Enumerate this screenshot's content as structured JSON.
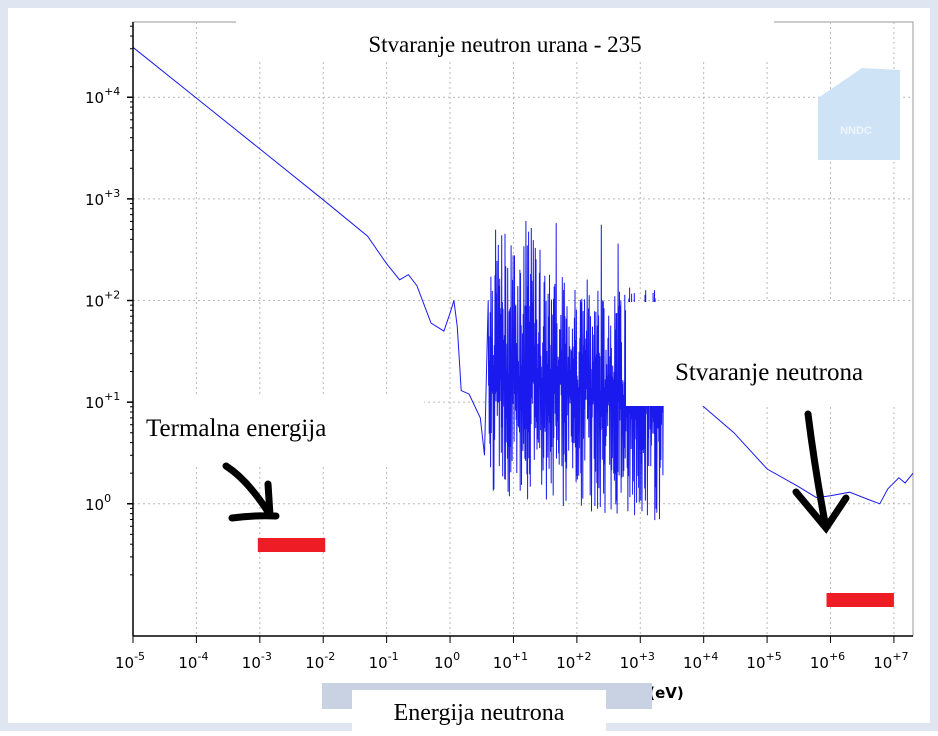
{
  "chart_data": {
    "type": "line",
    "title": "Stvaranje neutron urana - 235",
    "xlabel": "Energija neutrona",
    "x_unit": "(eV)",
    "ylabel": "",
    "x_scale": "log",
    "y_scale": "log",
    "xlim": [
      1e-05,
      20000000.0
    ],
    "ylim": [
      0.05,
      55000
    ],
    "grid": true,
    "x_ticks": [
      {
        "value": 1e-05,
        "base": "10",
        "exp": "-5"
      },
      {
        "value": 0.0001,
        "base": "10",
        "exp": "-4"
      },
      {
        "value": 0.001,
        "base": "10",
        "exp": "-3"
      },
      {
        "value": 0.01,
        "base": "10",
        "exp": "-2"
      },
      {
        "value": 0.1,
        "base": "10",
        "exp": "-1"
      },
      {
        "value": 1.0,
        "base": "10",
        "exp": "0"
      },
      {
        "value": 10.0,
        "base": "10",
        "exp": "+1"
      },
      {
        "value": 100.0,
        "base": "10",
        "exp": "+2"
      },
      {
        "value": 1000.0,
        "base": "10",
        "exp": "+3"
      },
      {
        "value": 10000.0,
        "base": "10",
        "exp": "+4"
      },
      {
        "value": 100000.0,
        "base": "10",
        "exp": "+5"
      },
      {
        "value": 1000000.0,
        "base": "10",
        "exp": "+6"
      },
      {
        "value": 10000000.0,
        "base": "10",
        "exp": "+7"
      }
    ],
    "y_ticks": [
      {
        "value": 1.0,
        "base": "10",
        "exp": "0"
      },
      {
        "value": 10.0,
        "base": "10",
        "exp": "+1"
      },
      {
        "value": 100.0,
        "base": "10",
        "exp": "+2"
      },
      {
        "value": 1000.0,
        "base": "10",
        "exp": "+3"
      },
      {
        "value": 10000.0,
        "base": "10",
        "exp": "+4"
      }
    ],
    "series": [
      {
        "color": "#1a1aee",
        "points": [
          [
            1e-05,
            31000
          ],
          [
            0.0001,
            9800
          ],
          [
            0.001,
            3100
          ],
          [
            0.01,
            980
          ],
          [
            0.05,
            430
          ],
          [
            0.1,
            230
          ],
          [
            0.16,
            160
          ],
          [
            0.22,
            180
          ],
          [
            0.3,
            140
          ],
          [
            0.5,
            60
          ],
          [
            0.8,
            50
          ],
          [
            1.0,
            75
          ],
          [
            1.15,
            100
          ],
          [
            1.3,
            55
          ],
          [
            1.5,
            13
          ],
          [
            2.0,
            12
          ],
          [
            3.0,
            7
          ],
          [
            3.5,
            3
          ]
        ],
        "resonance_region": {
          "x_from": 4,
          "x_to": 2300,
          "y_min": 0.5,
          "y_max": 650
        },
        "tail": [
          [
            2300,
            20
          ],
          [
            5000,
            14
          ],
          [
            10000.0,
            9
          ],
          [
            30000.0,
            5
          ],
          [
            100000.0,
            2.2
          ],
          [
            300000.0,
            1.5
          ],
          [
            600000.0,
            1.15
          ],
          [
            1000000.0,
            1.2
          ],
          [
            2000000.0,
            1.3
          ],
          [
            4000000.0,
            1.1
          ],
          [
            6000000.0,
            1.0
          ],
          [
            8000000.0,
            1.4
          ],
          [
            12000000.0,
            1.8
          ],
          [
            15000000.0,
            1.6
          ],
          [
            20000000.0,
            2.0
          ]
        ]
      }
    ],
    "annotations": {
      "thermal_label": "Termalna energija",
      "thermal_range": [
        0.001,
        0.01
      ],
      "generation_label": "Stvaranje neutrona",
      "generation_range": [
        1000000.0,
        10000000.0
      ],
      "marker_color": "#ee1c24"
    },
    "watermark": "NNDC"
  }
}
